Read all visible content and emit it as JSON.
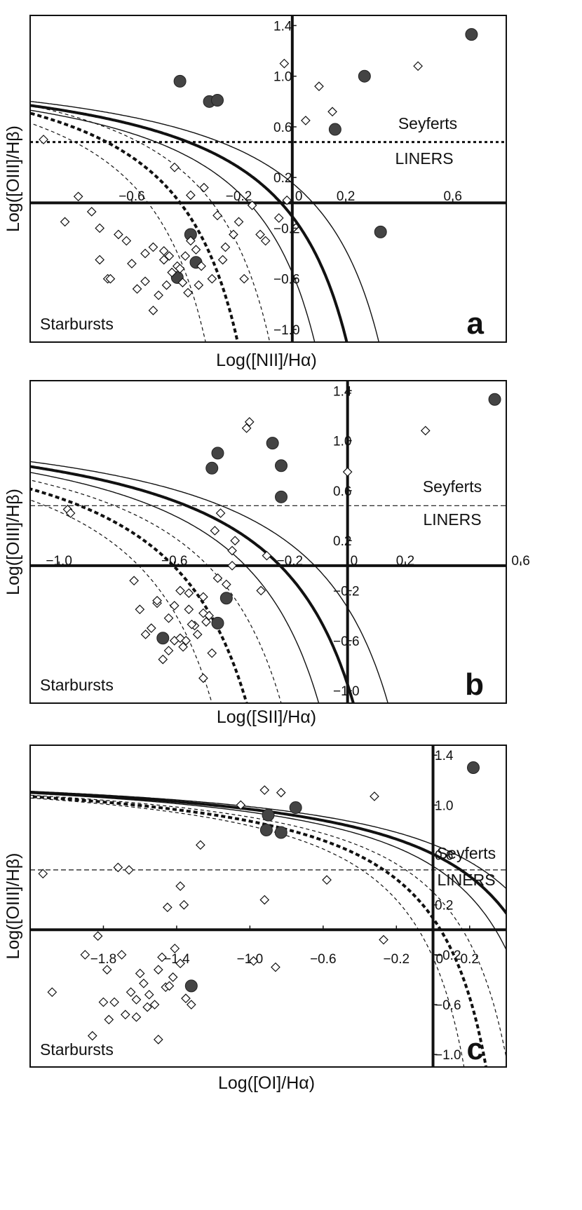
{
  "chart_data": [
    {
      "type": "scatter",
      "panel": "a",
      "xlabel": "Log([NII]/Hα)",
      "ylabel": "Log([OIII]/Hβ)",
      "xlim": [
        -0.98,
        0.8
      ],
      "ylim": [
        -1.1,
        1.48
      ],
      "x_ticks": [
        "-0.6",
        "-0.2",
        "0",
        "0.2",
        "0.6"
      ],
      "y_ticks": [
        "1.4",
        "1.0",
        "0.6",
        "0.2",
        "-0.2",
        "-0.6",
        "-1.0"
      ],
      "region_labels": [
        "Seyferts",
        "LINERS",
        "Starbursts"
      ],
      "dividing_line_y": 0.48,
      "series": [
        {
          "marker": "filled-circle",
          "x": [
            -0.42,
            -0.31,
            -0.28,
            0.27,
            0.16,
            0.33,
            -0.36,
            -0.38,
            -0.43,
            0.67
          ],
          "y": [
            0.96,
            0.8,
            0.81,
            1.0,
            0.58,
            -0.23,
            -0.47,
            -0.25,
            -0.59,
            1.33
          ]
        },
        {
          "marker": "open-diamond",
          "x": [
            -0.93,
            -0.8,
            -0.85,
            -0.75,
            -0.72,
            -0.69,
            -0.65,
            -0.62,
            -0.55,
            -0.52,
            -0.48,
            -0.45,
            -0.43,
            -0.41,
            -0.4,
            -0.38,
            -0.36,
            -0.34,
            -0.3,
            -0.25,
            -0.2,
            -0.15,
            -0.12,
            -0.1,
            -0.05,
            -0.02,
            -0.72,
            -0.68,
            -0.6,
            -0.58,
            -0.5,
            -0.47,
            -0.46,
            -0.42,
            -0.39,
            -0.35,
            -0.28,
            -0.22,
            -0.18,
            -0.26,
            0.05,
            0.1,
            0.15,
            0.47,
            -0.03,
            -0.44,
            -0.48,
            -0.52,
            -0.33,
            -0.38,
            -0.55
          ],
          "y": [
            0.5,
            0.05,
            -0.15,
            -0.07,
            -0.2,
            -0.6,
            -0.25,
            -0.3,
            -0.4,
            -0.35,
            -0.45,
            -0.55,
            -0.5,
            -0.63,
            -0.42,
            -0.3,
            -0.37,
            -0.5,
            -0.6,
            -0.35,
            -0.15,
            -0.02,
            -0.25,
            -0.3,
            -0.12,
            0.02,
            -0.45,
            -0.6,
            -0.48,
            -0.68,
            -0.73,
            -0.65,
            -0.42,
            -0.52,
            -0.71,
            -0.65,
            -0.1,
            -0.25,
            -0.6,
            -0.45,
            0.65,
            0.92,
            0.72,
            1.08,
            1.1,
            0.28,
            -0.38,
            -0.85,
            0.12,
            0.06,
            -0.62
          ]
        }
      ]
    },
    {
      "type": "scatter",
      "panel": "b",
      "xlabel": "Log([SII]/Hα)",
      "ylabel": "Log([OIII]/Hβ)",
      "xlim": [
        -1.1,
        0.55
      ],
      "ylim": [
        -1.1,
        1.48
      ],
      "x_ticks": [
        "-1.0",
        "-0.6",
        "-0.2",
        "0",
        "0.2",
        "0.6"
      ],
      "y_ticks": [
        "1.4",
        "1.0",
        "0.6",
        "0.2",
        "-0.2",
        "-0.6",
        "-1.0"
      ],
      "region_labels": [
        "Seyferts",
        "LINERS",
        "Starbursts"
      ],
      "dividing_line_y": 0.48,
      "series": [
        {
          "marker": "filled-circle",
          "x": [
            -0.45,
            -0.47,
            -0.26,
            -0.23,
            -0.23,
            -0.42,
            -0.45,
            -0.64,
            0.51
          ],
          "y": [
            0.9,
            0.78,
            0.98,
            0.8,
            0.55,
            -0.26,
            -0.46,
            -0.58,
            1.33
          ]
        },
        {
          "marker": "open-diamond",
          "x": [
            -0.97,
            -0.96,
            -0.74,
            -0.72,
            -0.68,
            -0.66,
            -0.62,
            -0.58,
            -0.55,
            -0.53,
            -0.5,
            -0.48,
            -0.45,
            -0.42,
            -0.4,
            -0.6,
            -0.64,
            -0.57,
            -0.52,
            -0.47,
            -0.49,
            -0.7,
            -0.66,
            -0.6,
            -0.55,
            -0.62,
            -0.58,
            -0.5,
            -0.44,
            -0.39,
            -0.34,
            -0.28,
            -0.35,
            -0.3,
            0.0,
            0.27,
            -0.4,
            -0.46,
            -0.5,
            -0.54,
            -0.56
          ],
          "y": [
            0.45,
            0.42,
            -0.12,
            -0.35,
            -0.5,
            -0.3,
            -0.42,
            -0.2,
            -0.35,
            -0.48,
            -0.25,
            -0.4,
            -0.1,
            -0.15,
            0.0,
            -0.6,
            -0.75,
            -0.65,
            -0.55,
            -0.7,
            -0.45,
            -0.55,
            -0.28,
            -0.32,
            -0.22,
            -0.68,
            -0.58,
            -0.9,
            0.42,
            0.2,
            1.15,
            0.08,
            1.1,
            -0.2,
            0.75,
            1.08,
            0.12,
            0.28,
            -0.38,
            -0.47,
            -0.6
          ]
        }
      ]
    },
    {
      "type": "scatter",
      "panel": "c",
      "xlabel": "Log([OI]/Hα)",
      "ylabel": "Log([OIII]/Hβ)",
      "xlim": [
        -2.2,
        0.4
      ],
      "ylim": [
        -1.1,
        1.48
      ],
      "x_ticks": [
        "-1.8",
        "-1.4",
        "-1.0",
        "-0.6",
        "-0.2",
        "0",
        "0.2"
      ],
      "y_ticks": [
        "1.4",
        "1.0",
        "0.6",
        "0.2",
        "-0.2",
        "-0.6",
        "-1.0"
      ],
      "region_labels": [
        "Seyferts",
        "LINERS",
        "Starbursts"
      ],
      "dividing_line_y": 0.48,
      "series": [
        {
          "marker": "filled-circle",
          "x": [
            -0.9,
            -0.91,
            -0.83,
            -0.75,
            -1.32,
            0.22
          ],
          "y": [
            0.92,
            0.8,
            0.78,
            0.98,
            -0.45,
            1.3
          ]
        },
        {
          "marker": "open-diamond",
          "x": [
            -2.13,
            -1.72,
            -1.66,
            -1.45,
            -1.38,
            -1.27,
            -1.05,
            -0.92,
            -0.83,
            -0.86,
            -0.58,
            -0.32,
            -0.27,
            -1.83,
            -1.78,
            -1.7,
            -1.65,
            -1.62,
            -1.6,
            -1.55,
            -1.5,
            -1.46,
            -1.42,
            -1.38,
            -1.35,
            -1.68,
            -1.74,
            -1.62,
            -1.58,
            -1.48,
            -1.44,
            -1.52,
            -1.41,
            -1.36,
            -2.08,
            -1.9,
            -1.86,
            -1.8,
            -1.77,
            -1.5,
            -0.92,
            -1.32,
            -1.56,
            -0.98
          ],
          "y": [
            0.45,
            0.5,
            0.48,
            0.18,
            0.35,
            0.68,
            1.0,
            1.12,
            1.1,
            -0.3,
            0.4,
            1.07,
            -0.08,
            -0.05,
            -0.32,
            -0.2,
            -0.5,
            -0.7,
            -0.35,
            -0.52,
            -0.32,
            -0.46,
            -0.38,
            -0.27,
            -0.55,
            -0.68,
            -0.58,
            -0.56,
            -0.43,
            -0.22,
            -0.45,
            -0.6,
            -0.15,
            0.2,
            -0.5,
            -0.2,
            -0.85,
            -0.58,
            -0.72,
            -0.88,
            0.24,
            -0.6,
            -0.62,
            -0.25
          ]
        }
      ]
    }
  ]
}
